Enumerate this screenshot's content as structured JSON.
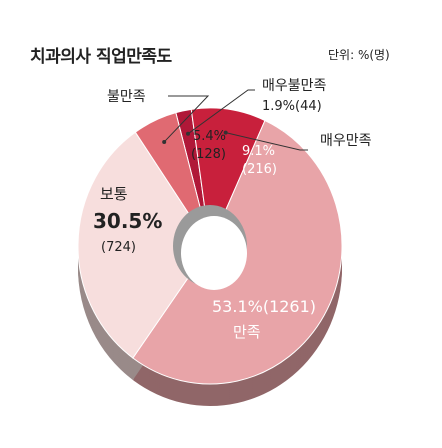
{
  "title": "치과의사 직업만족도",
  "unit_label": "단위: %(명)",
  "chart_data": {
    "type": "pie",
    "title": "치과의사 직업만족도",
    "unit": "%(명)",
    "slices": [
      {
        "label": "매우불만족",
        "percent": 1.9,
        "count": 44,
        "percent_text": "1.9%",
        "count_text": "(44)",
        "color": "#b01838"
      },
      {
        "label": "매우만족",
        "percent": 9.1,
        "count": 216,
        "percent_text": "9.1%",
        "count_text": "(216)",
        "color": "#c8203c"
      },
      {
        "label": "만족",
        "percent": 53.1,
        "count": 1261,
        "percent_text": "53.1%",
        "count_text": "(1261)",
        "color": "#e8a4a8"
      },
      {
        "label": "보통",
        "percent": 30.5,
        "count": 724,
        "percent_text": "30.5%",
        "count_text": "(724)",
        "color": "#f7dedd"
      },
      {
        "label": "불만족",
        "percent": 5.4,
        "count": 128,
        "percent_text": "5.4%",
        "count_text": "(128)",
        "color": "#e06a72"
      }
    ],
    "combined_labels": {
      "very_dissatisfied": "1.9%(44)",
      "satisfied": "53.1%(1261)"
    }
  }
}
